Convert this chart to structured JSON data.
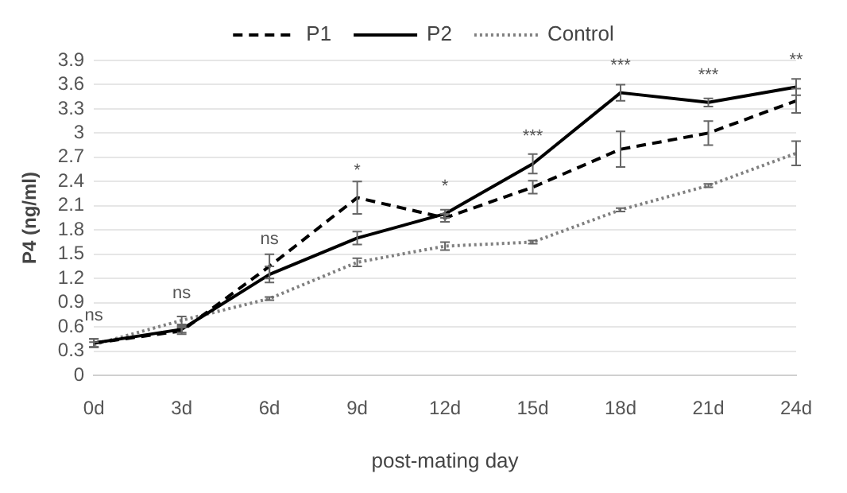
{
  "chart_data": {
    "type": "line",
    "xlabel": "post-mating day",
    "ylabel": "P4 (ng/ml)",
    "categories": [
      "0d",
      "3d",
      "6d",
      "9d",
      "12d",
      "15d",
      "18d",
      "21d",
      "24d"
    ],
    "series": [
      {
        "name": "P1",
        "color": "#000000",
        "line_style": "dashed",
        "values": [
          0.4,
          0.55,
          1.35,
          2.2,
          1.95,
          2.33,
          2.8,
          3.0,
          3.4
        ],
        "errors": [
          0.05,
          0.04,
          0.15,
          0.2,
          0.05,
          0.08,
          0.22,
          0.15,
          0.15
        ]
      },
      {
        "name": "P2",
        "color": "#000000",
        "line_style": "solid",
        "values": [
          0.4,
          0.57,
          1.25,
          1.7,
          2.0,
          2.62,
          3.5,
          3.38,
          3.57
        ],
        "errors": [
          0.05,
          0.04,
          0.1,
          0.08,
          0.05,
          0.12,
          0.1,
          0.05,
          0.1
        ]
      },
      {
        "name": "Control",
        "color": "#808080",
        "line_style": "dotted",
        "values": [
          0.38,
          0.68,
          0.95,
          1.4,
          1.6,
          1.65,
          2.05,
          2.35,
          2.75
        ],
        "errors": [
          0.03,
          0.05,
          0.02,
          0.05,
          0.05,
          0.02,
          0.02,
          0.02,
          0.15
        ]
      }
    ],
    "ylim": [
      0,
      3.9
    ],
    "yticks": [
      0,
      0.3,
      0.6,
      0.9,
      1.2,
      1.5,
      1.8,
      2.1,
      2.4,
      2.7,
      3,
      3.3,
      3.6,
      3.9
    ],
    "grid": "y",
    "legend": "top",
    "annotations": [
      {
        "text": "ns",
        "x": "0d",
        "y": 0.4
      },
      {
        "text": "ns",
        "x": "3d",
        "y": 0.68
      },
      {
        "text": "ns",
        "x": "6d",
        "y": 1.35
      },
      {
        "text": "*",
        "x": "9d",
        "y": 2.2
      },
      {
        "text": "*",
        "x": "12d",
        "y": 2.0
      },
      {
        "text": "***",
        "x": "15d",
        "y": 2.62
      },
      {
        "text": "***",
        "x": "18d",
        "y": 3.5
      },
      {
        "text": "***",
        "x": "21d",
        "y": 3.38
      },
      {
        "text": "**",
        "x": "24d",
        "y": 3.57
      }
    ]
  }
}
